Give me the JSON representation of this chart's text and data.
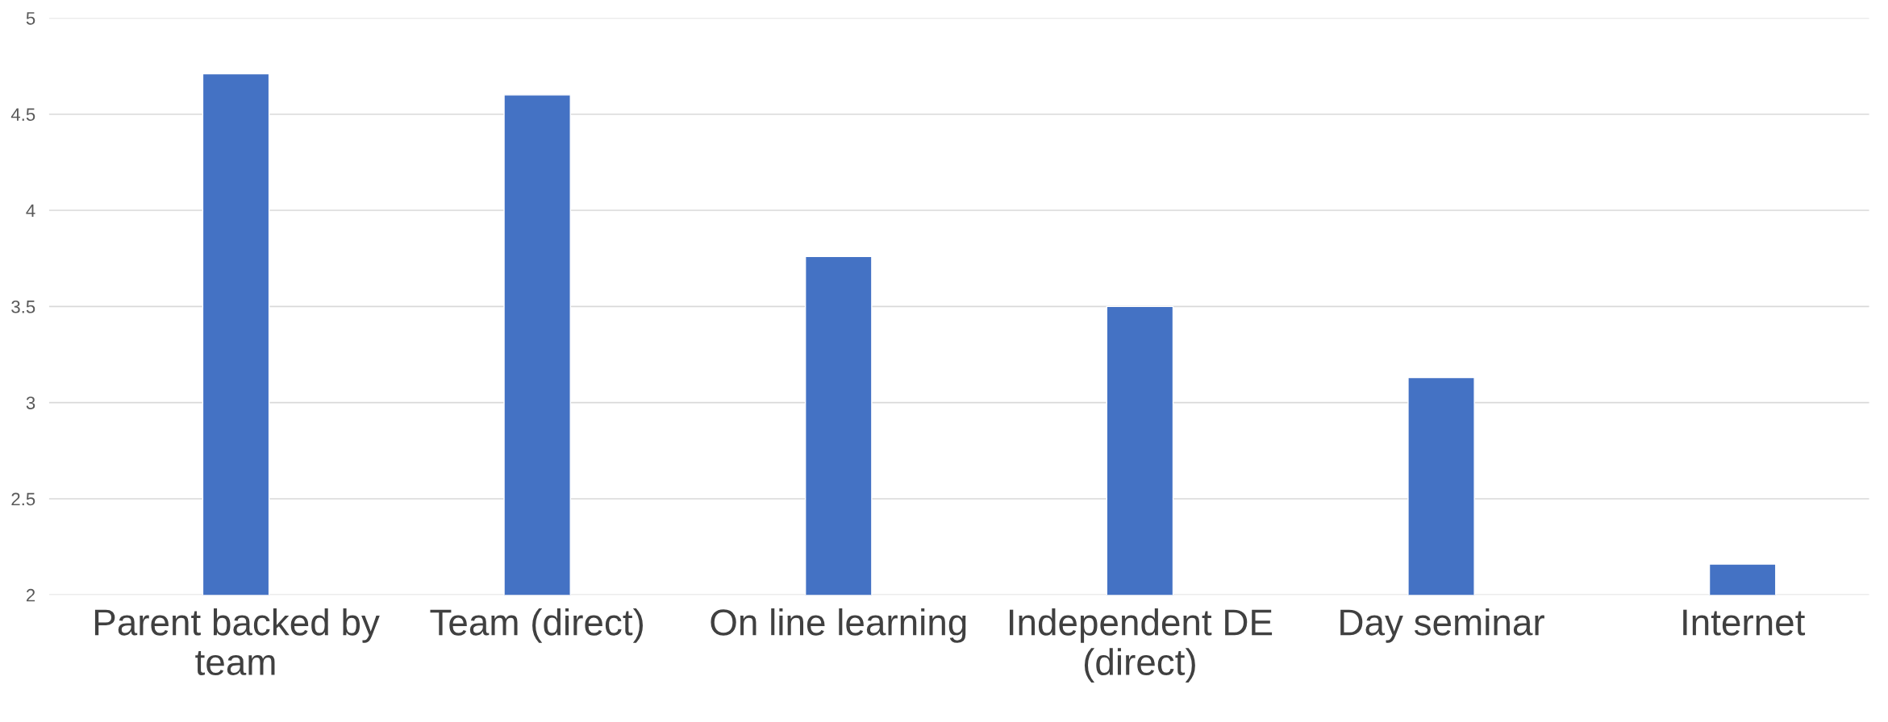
{
  "chart_data": {
    "type": "bar",
    "categories": [
      "Parent backed by team",
      "Team (direct)",
      "On line learning",
      "Independent DE (direct)",
      "Day seminar",
      "Internet"
    ],
    "values": [
      4.71,
      4.6,
      3.76,
      3.5,
      3.13,
      2.16
    ],
    "color": "#4472c4",
    "ylim": [
      2,
      5
    ],
    "yticks": [
      2,
      {
        "value": 2.5,
        "label": "2.5"
      },
      3,
      {
        "value": 3.5,
        "label": "3.5"
      },
      4,
      {
        "value": 4.5,
        "label": "4.5"
      },
      5
    ],
    "grid": "y"
  }
}
